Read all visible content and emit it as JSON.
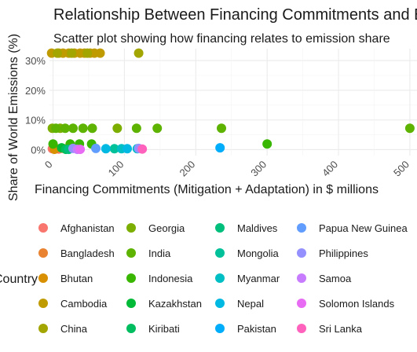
{
  "chart_data": {
    "type": "scatter",
    "title": "Relationship Between Financing Commitments and Emissions",
    "subtitle": "Scatter plot showing how financing relates to emission share",
    "xlabel": "Financing Commitments (Mitigation + Adaptation) in $ millions",
    "ylabel": "Share of World Emissions (%)",
    "xlim": [
      -5,
      510
    ],
    "ylim": [
      -2,
      34
    ],
    "x_ticks": [
      0,
      100,
      200,
      300,
      400,
      500
    ],
    "y_ticks": [
      0,
      10,
      20,
      30
    ],
    "y_tick_labels": [
      "0%",
      "10%",
      "20%",
      "30%"
    ],
    "grid": true,
    "legend_title": "Country",
    "legend_position": "bottom",
    "series": [
      {
        "name": "Afghanistan",
        "color": "#F8766D",
        "points": [
          [
            -1,
            0.3
          ],
          [
            3,
            0.3
          ],
          [
            8,
            0.2
          ]
        ]
      },
      {
        "name": "Bangladesh",
        "color": "#EA8331",
        "points": [
          [
            4,
            0.4
          ],
          [
            14,
            0.4
          ]
        ]
      },
      {
        "name": "Bhutan",
        "color": "#D89000",
        "points": [
          [
            2,
            0.1
          ]
        ]
      },
      {
        "name": "Cambodia",
        "color": "#C09B00",
        "points": [
          [
            -2,
            32.5
          ],
          [
            8,
            32.5
          ],
          [
            14,
            32.5
          ],
          [
            22,
            32.5
          ],
          [
            30,
            32.5
          ],
          [
            38,
            32.5
          ],
          [
            44,
            32.5
          ],
          [
            52,
            32.5
          ],
          [
            58,
            32.5
          ],
          [
            66,
            32.5
          ]
        ]
      },
      {
        "name": "China",
        "color": "#A3A500",
        "points": [
          [
            6,
            32.5
          ],
          [
            26,
            32.5
          ],
          [
            48,
            32.5
          ],
          [
            120,
            32.5
          ]
        ]
      },
      {
        "name": "Georgia",
        "color": "#7CAE00",
        "points": [
          [
            -1,
            7.2
          ],
          [
            10,
            7.2
          ],
          [
            90,
            7.2
          ]
        ]
      },
      {
        "name": "India",
        "color": "#5EB300",
        "points": [
          [
            4,
            7.2
          ],
          [
            17,
            7.2
          ],
          [
            28,
            7.2
          ],
          [
            42,
            7.2
          ],
          [
            55,
            7.2
          ],
          [
            117,
            7.2
          ],
          [
            146,
            7.2
          ],
          [
            236,
            7.2
          ],
          [
            500,
            7.2
          ]
        ]
      },
      {
        "name": "Indonesia",
        "color": "#39B600",
        "points": [
          [
            0,
            1.9
          ],
          [
            24,
            1.9
          ],
          [
            37,
            1.9
          ],
          [
            54,
            1.9
          ],
          [
            300,
            1.9
          ]
        ]
      },
      {
        "name": "Kazakhstan",
        "color": "#00BA38",
        "points": [
          [
            12,
            0.6
          ]
        ]
      },
      {
        "name": "Kiribati",
        "color": "#00BD5F",
        "points": [
          [
            18,
            0.1
          ]
        ]
      },
      {
        "name": "Maldives",
        "color": "#00BF7D",
        "points": [
          [
            22,
            0.1
          ]
        ]
      },
      {
        "name": "Mongolia",
        "color": "#00C19A",
        "points": [
          [
            86,
            0.3
          ]
        ]
      },
      {
        "name": "Myanmar",
        "color": "#00BFC4",
        "points": [
          [
            96,
            0.3
          ],
          [
            118,
            0.3
          ]
        ]
      },
      {
        "name": "Nepal",
        "color": "#00B9E3",
        "points": [
          [
            74,
            0.3
          ],
          [
            104,
            0.3
          ]
        ]
      },
      {
        "name": "Pakistan",
        "color": "#00ADFA",
        "points": [
          [
            234,
            0.6
          ]
        ]
      },
      {
        "name": "Papua New Guinea",
        "color": "#619CFF",
        "points": [
          [
            60,
            0.4
          ]
        ]
      },
      {
        "name": "Philippines",
        "color": "#9590FF",
        "points": [
          [
            28,
            0.4
          ],
          [
            120,
            0.4
          ]
        ]
      },
      {
        "name": "Samoa",
        "color": "#C77CFF",
        "points": [
          [
            34,
            0.1
          ]
        ]
      },
      {
        "name": "Solomon Islands",
        "color": "#E76BF3",
        "points": [
          [
            38,
            0.1
          ]
        ]
      },
      {
        "name": "Sri Lanka",
        "color": "#FF62BC",
        "points": [
          [
            125,
            0.2
          ]
        ]
      }
    ]
  }
}
